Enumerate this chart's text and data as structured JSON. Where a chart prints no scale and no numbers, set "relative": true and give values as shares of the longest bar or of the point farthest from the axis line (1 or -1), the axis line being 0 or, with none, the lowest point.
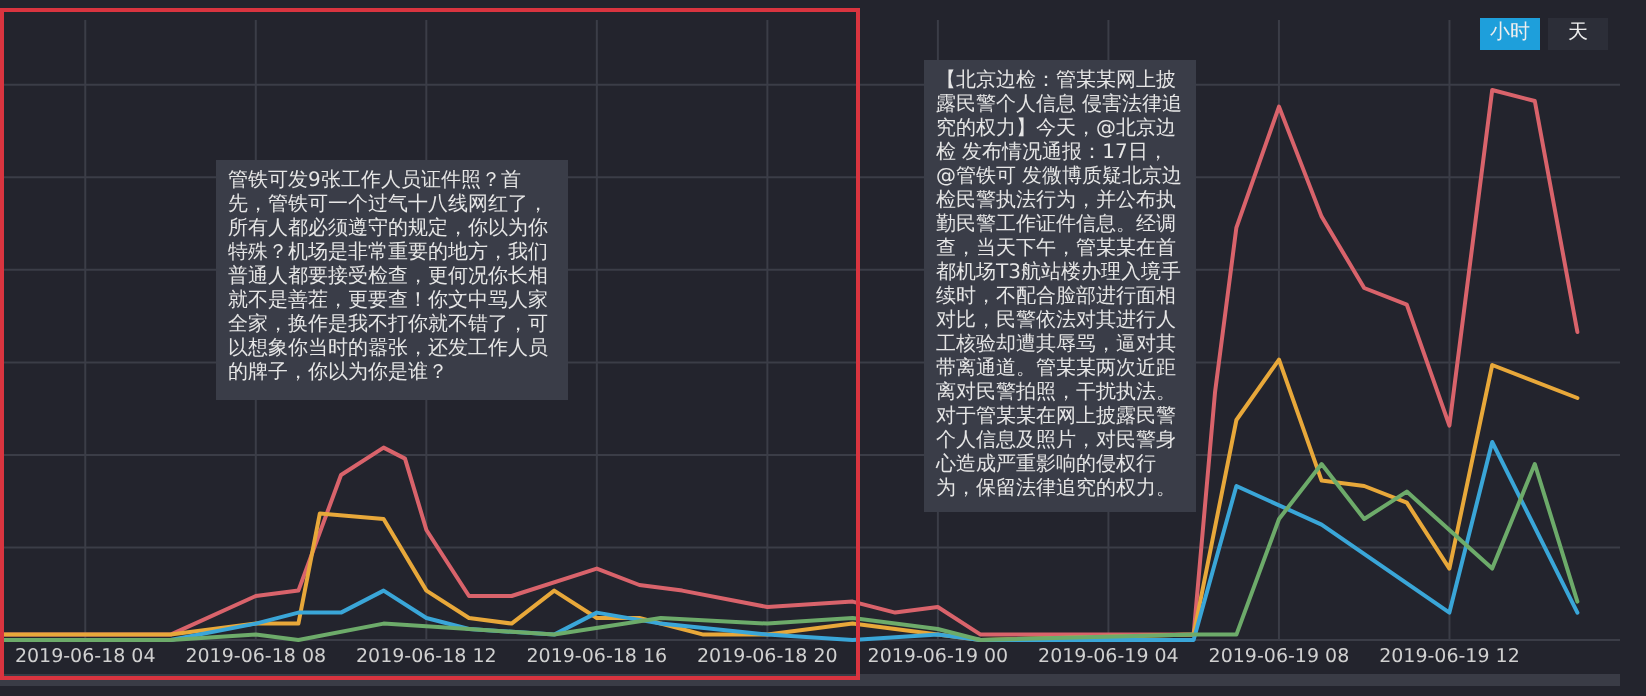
{
  "chart_data": {
    "type": "line",
    "relative": true,
    "grid": true,
    "marker": "none",
    "line_style": "solid",
    "xlim": [
      "2019-06-18T02:00",
      "2019-06-19T16:00"
    ],
    "xticks": [
      {
        "value": "2019-06-18T04:00",
        "label": "2019-06-18 04"
      },
      {
        "value": "2019-06-18T08:00",
        "label": "2019-06-18 08"
      },
      {
        "value": "2019-06-18T12:00",
        "label": "2019-06-18 12"
      },
      {
        "value": "2019-06-18T16:00",
        "label": "2019-06-18 16"
      },
      {
        "value": "2019-06-18T20:00",
        "label": "2019-06-18 20"
      },
      {
        "value": "2019-06-19T00:00",
        "label": "2019-06-19 00"
      },
      {
        "value": "2019-06-19T04:00",
        "label": "2019-06-19 04"
      },
      {
        "value": "2019-06-19T08:00",
        "label": "2019-06-19 08"
      },
      {
        "value": "2019-06-19T12:00",
        "label": "2019-06-19 12"
      }
    ],
    "series": [
      {
        "color": "#d9636b",
        "x": [
          "2019-06-18T02:00",
          "2019-06-18T06:00",
          "2019-06-18T08:00",
          "2019-06-18T09:00",
          "2019-06-18T10:00",
          "2019-06-18T11:00",
          "2019-06-18T11:30",
          "2019-06-18T12:00",
          "2019-06-18T13:00",
          "2019-06-18T14:00",
          "2019-06-18T16:00",
          "2019-06-18T17:00",
          "2019-06-18T18:00",
          "2019-06-18T20:00",
          "2019-06-18T22:00",
          "2019-06-18T23:00",
          "2019-06-19T00:00",
          "2019-06-19T01:00",
          "2019-06-19T06:00",
          "2019-06-19T06:30",
          "2019-06-19T07:00",
          "2019-06-19T08:00",
          "2019-06-19T09:00",
          "2019-06-19T10:00",
          "2019-06-19T11:00",
          "2019-06-19T12:00",
          "2019-06-19T13:00",
          "2019-06-19T14:00",
          "2019-06-19T15:00"
        ],
        "values": [
          0.01,
          0.01,
          0.08,
          0.09,
          0.3,
          0.35,
          0.33,
          0.2,
          0.08,
          0.08,
          0.13,
          0.1,
          0.09,
          0.06,
          0.07,
          0.05,
          0.06,
          0.01,
          0.01,
          0.45,
          0.75,
          0.97,
          0.77,
          0.64,
          0.61,
          0.39,
          1.0,
          0.98,
          0.56
        ]
      },
      {
        "color": "#e8a83a",
        "x": [
          "2019-06-18T02:00",
          "2019-06-18T06:00",
          "2019-06-18T08:00",
          "2019-06-18T09:00",
          "2019-06-18T09:30",
          "2019-06-18T11:00",
          "2019-06-18T12:00",
          "2019-06-18T13:00",
          "2019-06-18T14:00",
          "2019-06-18T15:00",
          "2019-06-18T16:00",
          "2019-06-18T17:00",
          "2019-06-18T18:30",
          "2019-06-18T20:00",
          "2019-06-18T22:00",
          "2019-06-19T00:00",
          "2019-06-19T01:00",
          "2019-06-19T06:00",
          "2019-06-19T07:00",
          "2019-06-19T08:00",
          "2019-06-19T09:00",
          "2019-06-19T10:00",
          "2019-06-19T11:00",
          "2019-06-19T12:00",
          "2019-06-19T13:00",
          "2019-06-19T15:00"
        ],
        "values": [
          0.01,
          0.01,
          0.03,
          0.03,
          0.23,
          0.22,
          0.09,
          0.04,
          0.03,
          0.09,
          0.04,
          0.04,
          0.01,
          0.01,
          0.03,
          0.01,
          0.0,
          0.01,
          0.4,
          0.51,
          0.29,
          0.28,
          0.25,
          0.13,
          0.5,
          0.44
        ]
      },
      {
        "color": "#3aa6d8",
        "x": [
          "2019-06-18T02:00",
          "2019-06-18T06:00",
          "2019-06-18T08:00",
          "2019-06-18T09:00",
          "2019-06-18T10:00",
          "2019-06-18T11:00",
          "2019-06-18T12:00",
          "2019-06-18T13:00",
          "2019-06-18T15:00",
          "2019-06-18T16:00",
          "2019-06-18T17:30",
          "2019-06-18T20:00",
          "2019-06-18T22:00",
          "2019-06-19T00:00",
          "2019-06-19T01:00",
          "2019-06-19T06:00",
          "2019-06-19T07:00",
          "2019-06-19T09:00",
          "2019-06-19T12:00",
          "2019-06-19T13:00",
          "2019-06-19T15:00"
        ],
        "values": [
          0.0,
          0.0,
          0.03,
          0.05,
          0.05,
          0.09,
          0.04,
          0.02,
          0.01,
          0.05,
          0.03,
          0.01,
          0.0,
          0.01,
          0.0,
          0.0,
          0.28,
          0.21,
          0.05,
          0.36,
          0.05
        ]
      },
      {
        "color": "#6dab6a",
        "x": [
          "2019-06-18T02:00",
          "2019-06-18T06:00",
          "2019-06-18T08:00",
          "2019-06-18T09:00",
          "2019-06-18T11:00",
          "2019-06-18T13:00",
          "2019-06-18T15:00",
          "2019-06-18T17:30",
          "2019-06-18T20:00",
          "2019-06-18T22:00",
          "2019-06-19T00:00",
          "2019-06-19T01:00",
          "2019-06-19T06:00",
          "2019-06-19T07:00",
          "2019-06-19T08:00",
          "2019-06-19T09:00",
          "2019-06-19T10:00",
          "2019-06-19T11:00",
          "2019-06-19T13:00",
          "2019-06-19T14:00",
          "2019-06-19T15:00"
        ],
        "values": [
          0.0,
          0.0,
          0.01,
          0.0,
          0.03,
          0.02,
          0.01,
          0.04,
          0.03,
          0.04,
          0.02,
          0.0,
          0.01,
          0.01,
          0.22,
          0.32,
          0.22,
          0.27,
          0.13,
          0.32,
          0.07
        ]
      }
    ],
    "annotations": [
      "管铁可发9张工作人员证件照？首先，管铁可一个过气十八线网红了，所有人都必须遵守的规定，你以为你特殊？机场是非常重要的地方，我们普通人都要接受检查，更何况你长相就不是善茬，更要查！你文中骂人家全家，换作是我不打你就不错了，可以想象你当时的嚣张，还发工作人员的牌子，你以为你是谁？",
      "【北京边检：管某某网上披露民警个人信息 侵害法律追究的权力】今天，@北京边检 发布情况通报：17日，@管铁可 发微博质疑北京边检民警执法行为，并公布执勤民警工作证件信息。经调查，当天下午，管某某在首都机场T3航站楼办理入境手续时，不配合脸部进行面相对比，民警依法对其进行人工核验却遭其辱骂，逼对其带离通道。管某某两次近距离对民警拍照，干扰执法。对于管某某在网上披露民警个人信息及照片，对民警身心造成严重影响的侵权行为，保留法律追究的权力。",
      "小时",
      "天"
    ]
  }
}
